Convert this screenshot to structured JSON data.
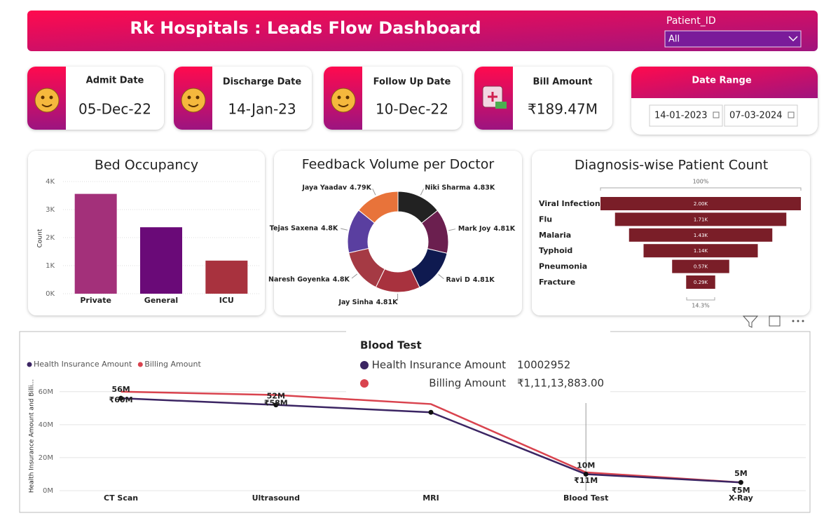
{
  "header": {
    "title": "Rk Hospitals : Leads Flow Dashboard",
    "slicer_label": "Patient_ID",
    "slicer_value": "All"
  },
  "cards": [
    {
      "label": "Admit Date",
      "value": "05-Dec-22"
    },
    {
      "label": "Discharge Date",
      "value": "14-Jan-23"
    },
    {
      "label": "Follow Up Date",
      "value": "10-Dec-22"
    },
    {
      "label": "Bill Amount",
      "value": "₹189.47M"
    }
  ],
  "date_range": {
    "title": "Date Range",
    "from": "14-01-2023",
    "to": "07-03-2024"
  },
  "chart_data": [
    {
      "type": "bar",
      "title": "Bed Occupancy",
      "y_label": "Count",
      "categories": [
        "Private",
        "General",
        "ICU"
      ],
      "values": [
        3560,
        2370,
        1180
      ],
      "colors": [
        "#a3307a",
        "#6a0a78",
        "#a8323e"
      ],
      "ylim": [
        0,
        4000
      ],
      "yticks": [
        {
          "value": 0,
          "label": "0K"
        },
        {
          "value": 1000,
          "label": "1K"
        },
        {
          "value": 2000,
          "label": "2K"
        },
        {
          "value": 3000,
          "label": "3K"
        },
        {
          "value": 4000,
          "label": "4K"
        }
      ],
      "grid": true
    },
    {
      "type": "donut",
      "title": "Feedback Volume per Doctor",
      "categories": [
        "Niki Sharma",
        "Mark Joy",
        "Ravi D",
        "Jay Sinha",
        "Naresh Goyenka",
        "Tejas Saxena",
        "Jaya Yaadav"
      ],
      "values": [
        4830,
        4810,
        4810,
        4810,
        4800,
        4800,
        4790
      ],
      "value_labels": [
        "4.83K",
        "4.81K",
        "4.81K",
        "4.81K",
        "4.8K",
        "4.8K",
        "4.79K"
      ],
      "colors": [
        "#222222",
        "#6b1f4f",
        "#0f1a50",
        "#a8323e",
        "#a53a44",
        "#5a3fa0",
        "#e8733a"
      ]
    },
    {
      "type": "funnel",
      "title": "Diagnosis-wise Patient Count",
      "categories": [
        "Viral Infection",
        "Flu",
        "Malaria",
        "Typhoid",
        "Pneumonia",
        "Fracture"
      ],
      "values": [
        2000,
        1710,
        1430,
        1140,
        570,
        290
      ],
      "value_labels": [
        "2.00K",
        "1.71K",
        "1.43K",
        "1.14K",
        "0.57K",
        "0.29K"
      ],
      "color": "#7a1e28",
      "top_label": "100%",
      "bottom_label": "14.3%"
    },
    {
      "type": "line",
      "y_label": "Health Insurance Amount and Billi...",
      "categories": [
        "CT Scan",
        "Ultrasound",
        "MRI",
        "Blood Test",
        "X-Ray"
      ],
      "series": [
        {
          "name": "Health Insurance Amount",
          "color": "#3b2563",
          "values": [
            56000000,
            52000000,
            47500000,
            10002952,
            5000000
          ],
          "value_labels": [
            "56M",
            "52M",
            null,
            "10M",
            "5M"
          ]
        },
        {
          "name": "Billing Amount",
          "color": "#d9434e",
          "values": [
            60000000,
            58000000,
            52500000,
            11113883,
            5000000
          ],
          "value_labels": [
            "₹60M",
            "₹58M",
            null,
            "₹11M",
            "₹5M"
          ]
        }
      ],
      "ylim": [
        0,
        65000000
      ],
      "yticks": [
        {
          "value": 0,
          "label": "0M"
        },
        {
          "value": 20000000,
          "label": "20M"
        },
        {
          "value": 40000000,
          "label": "40M"
        },
        {
          "value": 60000000,
          "label": "60M"
        }
      ],
      "grid": true,
      "legend": "top-left"
    }
  ],
  "tooltip": {
    "title": "Blood Test",
    "rows": [
      {
        "name": "Health Insurance Amount",
        "value": 10002952
      },
      {
        "name": "Billing Amount",
        "value": "₹1,11,13,883.00"
      }
    ]
  }
}
